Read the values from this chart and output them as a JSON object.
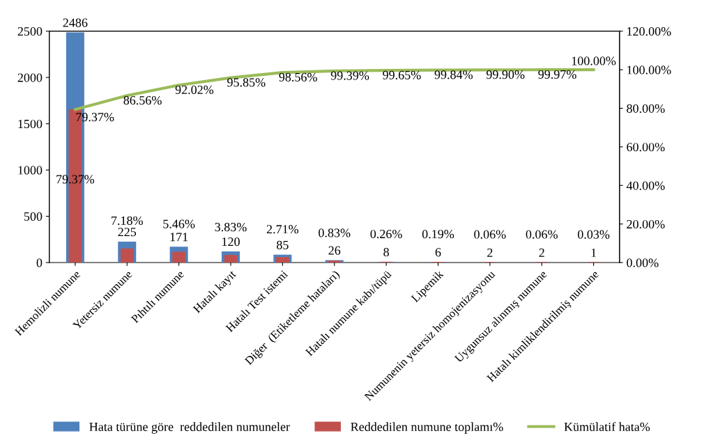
{
  "chart_data": {
    "type": "bar",
    "categories": [
      "Hemolizli numune",
      "Yetersiz numune",
      "Pıhtılı numune",
      "Hatalı kayıt",
      "Hatalı Test istemi",
      "Diğer  (Etiketleme hataları)",
      "Hatalı numune kabı/tüpü",
      "Lipemik",
      "Numunenin yetersiz homojenizasyonu",
      "Uygunsuz alınmış numune",
      "Hatalı kimliklendirilmiş numune"
    ],
    "series": [
      {
        "name": "Hata türüne göre  reddedilen numuneler",
        "color": "#4f81bd",
        "values": [
          2486,
          225,
          171,
          120,
          85,
          26,
          8,
          6,
          2,
          2,
          1
        ],
        "value_labels": [
          "2486",
          "225",
          "171",
          "120",
          "85",
          "26",
          "8",
          "6",
          "2",
          "2",
          "1"
        ]
      },
      {
        "name": "Reddedilen numune toplamı%",
        "axis": "y2",
        "color": "#c0504d",
        "values": [
          79.37,
          7.18,
          5.46,
          3.83,
          2.71,
          0.83,
          0.26,
          0.19,
          0.06,
          0.06,
          0.03
        ],
        "value_labels": [
          "79.37%",
          "7.18%",
          "5.46%",
          "3.83%",
          "2.71%",
          "0.83%",
          "0.26%",
          "0.19%",
          "0.06%",
          "0.06%",
          "0.03%"
        ]
      },
      {
        "name": "Kümülatif hata%",
        "type": "line",
        "axis": "y2",
        "color": "#9bbb59",
        "values": [
          79.37,
          86.56,
          92.02,
          95.85,
          98.56,
          99.39,
          99.65,
          99.84,
          99.9,
          99.97,
          100.0
        ],
        "value_labels": [
          "79.37%",
          "86.56%",
          "92.02%",
          "95.85%",
          "98.56%",
          "99.39%",
          "99.65%",
          "99.84%",
          "99.90%",
          "99.97%",
          "100.00%"
        ]
      }
    ],
    "ylim": [
      0,
      2500
    ],
    "yticks": [
      0,
      500,
      1000,
      1500,
      2000,
      2500
    ],
    "y2lim": [
      0,
      120
    ],
    "y2ticks": [
      {
        "value": 0,
        "label": "0.00%"
      },
      {
        "value": 20,
        "label": "20.00%"
      },
      {
        "value": 40,
        "label": "40.00%"
      },
      {
        "value": 60,
        "label": "60.00%"
      },
      {
        "value": 80,
        "label": "80.00%"
      },
      {
        "value": 100,
        "label": "100.00%"
      },
      {
        "value": 120,
        "label": "120.00%"
      }
    ],
    "grid": false,
    "legend": "bottom",
    "marker": "none",
    "line_style": "solid"
  }
}
